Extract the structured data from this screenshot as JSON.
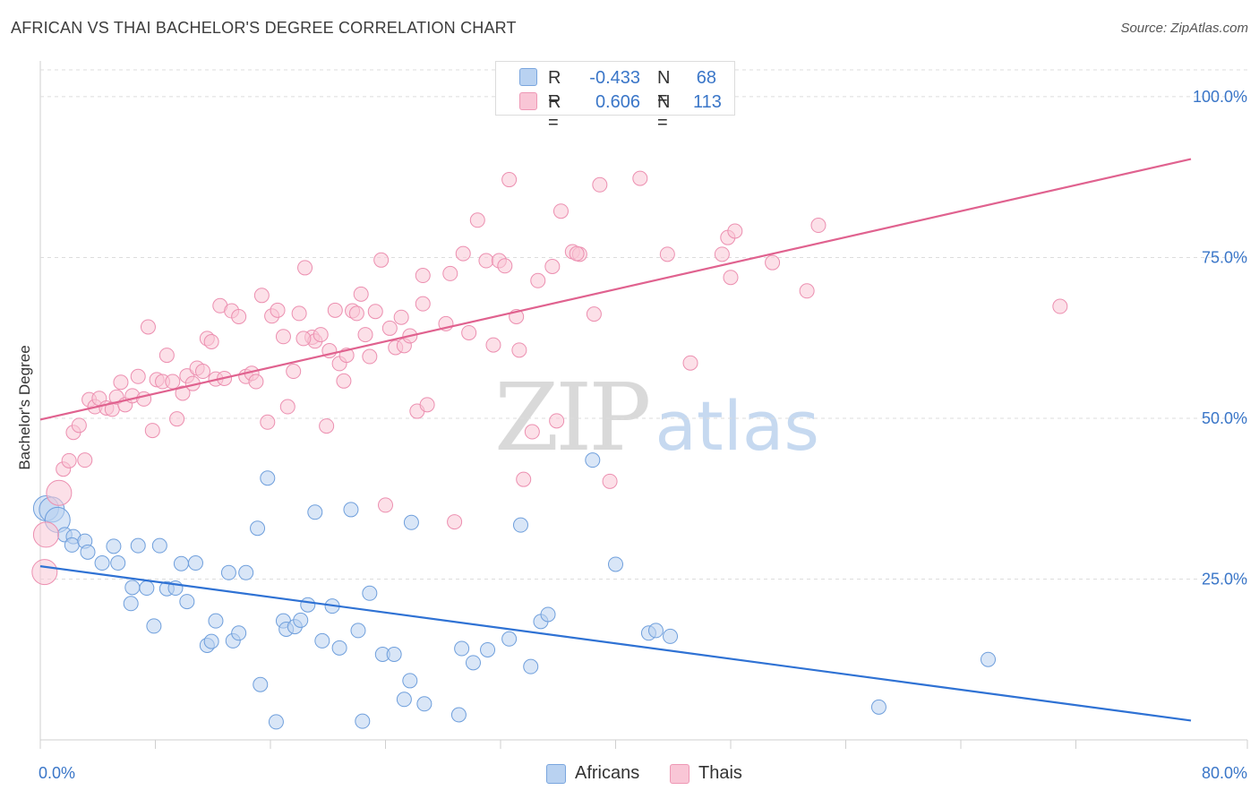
{
  "title": "AFRICAN VS THAI BACHELOR'S DEGREE CORRELATION CHART",
  "source": "Source: ZipAtlas.com",
  "watermark": {
    "zip": "ZIP",
    "atlas": "atlas"
  },
  "colors": {
    "blue": "#3a76c8",
    "blue_fill": "#a9c8ee",
    "blue_line": "#2f72d4",
    "pink": "#e86f9a",
    "pink_fill": "#f6b8cc",
    "pink_line": "#e0628f",
    "grid": "#dddddd",
    "tick_label": "#3a76c8"
  },
  "legend_top": {
    "rows": [
      {
        "r_label": "R =",
        "r_value": "-0.433",
        "n_label": "N =",
        "n_value": "68",
        "series": "Africans"
      },
      {
        "r_label": "R =",
        "r_value": "0.606",
        "n_label": "N =",
        "n_value": "113",
        "series": "Thais"
      }
    ]
  },
  "legend_bottom": [
    "Africans",
    "Thais"
  ],
  "chart_data": {
    "type": "scatter",
    "title": "AFRICAN VS THAI BACHELOR'S DEGREE CORRELATION CHART",
    "xlabel": "",
    "ylabel": "Bachelor's Degree",
    "xlim": [
      0,
      80
    ],
    "ylim": [
      0,
      100
    ],
    "x_tick_labels": [
      "0.0%",
      "80.0%"
    ],
    "y_tick_labels": [
      "100.0%",
      "75.0%",
      "50.0%",
      "25.0%"
    ],
    "y_ticks": [
      100,
      75,
      50,
      25
    ],
    "grid": true,
    "legend_position": "top-center",
    "series": [
      {
        "name": "Africans",
        "r": -0.433,
        "n": 68,
        "trend": {
          "x": [
            0,
            80
          ],
          "y": [
            27.0,
            3.0
          ]
        },
        "points": [
          [
            0.4,
            36.0
          ],
          [
            0.8,
            35.8
          ],
          [
            1.2,
            34.2
          ],
          [
            1.7,
            31.9
          ],
          [
            2.3,
            31.6
          ],
          [
            2.2,
            30.3
          ],
          [
            3.1,
            30.9
          ],
          [
            3.3,
            29.2
          ],
          [
            4.3,
            27.5
          ],
          [
            5.1,
            30.1
          ],
          [
            5.4,
            27.5
          ],
          [
            6.3,
            21.2
          ],
          [
            6.4,
            23.7
          ],
          [
            6.8,
            30.2
          ],
          [
            7.4,
            23.6
          ],
          [
            7.9,
            17.7
          ],
          [
            8.3,
            30.2
          ],
          [
            8.8,
            23.5
          ],
          [
            9.4,
            23.6
          ],
          [
            9.8,
            27.4
          ],
          [
            10.2,
            21.5
          ],
          [
            10.8,
            27.5
          ],
          [
            11.6,
            14.7
          ],
          [
            11.9,
            15.3
          ],
          [
            12.2,
            18.5
          ],
          [
            13.1,
            26.0
          ],
          [
            13.4,
            15.4
          ],
          [
            13.8,
            16.6
          ],
          [
            14.3,
            26.0
          ],
          [
            15.1,
            32.9
          ],
          [
            15.3,
            8.6
          ],
          [
            15.8,
            40.7
          ],
          [
            16.4,
            2.8
          ],
          [
            16.9,
            18.5
          ],
          [
            17.1,
            17.2
          ],
          [
            17.7,
            17.6
          ],
          [
            18.1,
            18.6
          ],
          [
            18.6,
            21.0
          ],
          [
            19.1,
            35.4
          ],
          [
            19.6,
            15.4
          ],
          [
            20.3,
            20.8
          ],
          [
            20.8,
            14.3
          ],
          [
            21.6,
            35.8
          ],
          [
            22.1,
            17.0
          ],
          [
            22.4,
            2.9
          ],
          [
            22.9,
            22.8
          ],
          [
            23.8,
            13.3
          ],
          [
            24.6,
            13.3
          ],
          [
            25.3,
            6.3
          ],
          [
            25.7,
            9.2
          ],
          [
            25.8,
            33.8
          ],
          [
            26.7,
            5.6
          ],
          [
            29.1,
            3.9
          ],
          [
            29.3,
            14.2
          ],
          [
            30.1,
            12.0
          ],
          [
            31.1,
            14.0
          ],
          [
            32.6,
            15.7
          ],
          [
            33.4,
            33.4
          ],
          [
            34.1,
            11.4
          ],
          [
            34.8,
            18.4
          ],
          [
            35.3,
            19.5
          ],
          [
            38.4,
            43.5
          ],
          [
            40.0,
            27.3
          ],
          [
            42.3,
            16.6
          ],
          [
            42.8,
            17.0
          ],
          [
            43.8,
            16.1
          ],
          [
            65.9,
            12.5
          ],
          [
            58.3,
            5.1
          ]
        ]
      },
      {
        "name": "Thais",
        "r": 0.606,
        "n": 113,
        "trend": {
          "x": [
            0,
            80
          ],
          "y": [
            49.8,
            90.3
          ]
        },
        "points": [
          [
            0.3,
            26.1
          ],
          [
            0.4,
            31.9
          ],
          [
            1.3,
            38.4
          ],
          [
            1.6,
            42.1
          ],
          [
            2.0,
            43.4
          ],
          [
            2.3,
            47.8
          ],
          [
            2.7,
            48.9
          ],
          [
            3.1,
            43.5
          ],
          [
            3.4,
            52.9
          ],
          [
            3.8,
            51.8
          ],
          [
            4.1,
            53.1
          ],
          [
            4.6,
            51.6
          ],
          [
            5.0,
            51.4
          ],
          [
            5.3,
            53.3
          ],
          [
            5.6,
            55.6
          ],
          [
            5.9,
            52.1
          ],
          [
            6.4,
            53.5
          ],
          [
            6.8,
            56.5
          ],
          [
            7.2,
            53.0
          ],
          [
            7.5,
            64.2
          ],
          [
            7.8,
            48.1
          ],
          [
            8.1,
            56.0
          ],
          [
            8.5,
            55.7
          ],
          [
            8.8,
            59.8
          ],
          [
            9.2,
            55.7
          ],
          [
            9.5,
            49.9
          ],
          [
            9.9,
            53.9
          ],
          [
            10.2,
            56.6
          ],
          [
            10.6,
            55.4
          ],
          [
            10.9,
            57.8
          ],
          [
            11.3,
            57.3
          ],
          [
            11.6,
            62.4
          ],
          [
            11.9,
            61.9
          ],
          [
            12.2,
            56.1
          ],
          [
            12.5,
            67.5
          ],
          [
            12.8,
            56.2
          ],
          [
            13.3,
            66.7
          ],
          [
            13.8,
            65.8
          ],
          [
            14.3,
            56.5
          ],
          [
            14.7,
            57.0
          ],
          [
            15.0,
            55.7
          ],
          [
            15.4,
            69.1
          ],
          [
            15.8,
            49.4
          ],
          [
            16.1,
            65.9
          ],
          [
            16.5,
            66.8
          ],
          [
            16.9,
            62.7
          ],
          [
            17.2,
            51.8
          ],
          [
            17.6,
            57.3
          ],
          [
            18.0,
            66.3
          ],
          [
            18.4,
            73.4
          ],
          [
            18.9,
            62.6
          ],
          [
            19.1,
            62.0
          ],
          [
            19.5,
            63.0
          ],
          [
            19.9,
            48.8
          ],
          [
            20.1,
            60.5
          ],
          [
            20.5,
            66.8
          ],
          [
            20.8,
            58.5
          ],
          [
            21.1,
            55.8
          ],
          [
            21.3,
            59.8
          ],
          [
            21.7,
            66.7
          ],
          [
            22.0,
            66.3
          ],
          [
            22.3,
            69.3
          ],
          [
            22.6,
            63.0
          ],
          [
            22.9,
            59.6
          ],
          [
            23.3,
            66.6
          ],
          [
            23.7,
            74.6
          ],
          [
            24.0,
            36.5
          ],
          [
            24.3,
            64.0
          ],
          [
            24.7,
            61.0
          ],
          [
            25.1,
            65.7
          ],
          [
            25.3,
            61.3
          ],
          [
            25.7,
            62.8
          ],
          [
            26.2,
            51.1
          ],
          [
            26.6,
            67.8
          ],
          [
            26.9,
            52.1
          ],
          [
            28.2,
            64.7
          ],
          [
            28.5,
            72.5
          ],
          [
            28.8,
            33.9
          ],
          [
            29.4,
            75.6
          ],
          [
            29.8,
            63.3
          ],
          [
            30.4,
            80.8
          ],
          [
            31.0,
            74.5
          ],
          [
            31.5,
            61.4
          ],
          [
            31.9,
            74.5
          ],
          [
            32.3,
            73.7
          ],
          [
            32.6,
            87.1
          ],
          [
            33.1,
            65.8
          ],
          [
            33.3,
            60.6
          ],
          [
            33.6,
            40.5
          ],
          [
            34.2,
            47.9
          ],
          [
            34.6,
            71.4
          ],
          [
            35.6,
            73.6
          ],
          [
            35.9,
            49.6
          ],
          [
            36.2,
            82.2
          ],
          [
            37.0,
            75.9
          ],
          [
            37.5,
            75.5
          ],
          [
            38.5,
            66.2
          ],
          [
            38.9,
            86.3
          ],
          [
            39.6,
            40.2
          ],
          [
            41.7,
            87.3
          ],
          [
            43.6,
            75.5
          ],
          [
            45.2,
            58.6
          ],
          [
            47.4,
            75.5
          ],
          [
            47.8,
            78.1
          ],
          [
            48.0,
            71.9
          ],
          [
            48.3,
            79.1
          ],
          [
            50.9,
            74.2
          ],
          [
            53.3,
            69.8
          ],
          [
            54.1,
            80.0
          ],
          [
            70.9,
            67.4
          ],
          [
            37.3,
            75.6
          ],
          [
            18.3,
            62.4
          ],
          [
            26.6,
            72.2
          ]
        ]
      }
    ]
  }
}
